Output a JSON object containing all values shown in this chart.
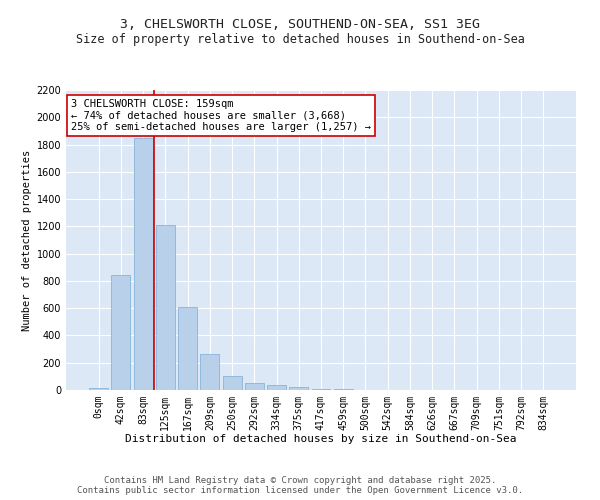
{
  "title_line1": "3, CHELSWORTH CLOSE, SOUTHEND-ON-SEA, SS1 3EG",
  "title_line2": "Size of property relative to detached houses in Southend-on-Sea",
  "xlabel": "Distribution of detached houses by size in Southend-on-Sea",
  "ylabel": "Number of detached properties",
  "bar_color": "#b8d0ea",
  "bar_edge_color": "#7aadd4",
  "background_color": "#dce8f5",
  "fig_background": "#ffffff",
  "categories": [
    "0sqm",
    "42sqm",
    "83sqm",
    "125sqm",
    "167sqm",
    "209sqm",
    "250sqm",
    "292sqm",
    "334sqm",
    "375sqm",
    "417sqm",
    "459sqm",
    "500sqm",
    "542sqm",
    "584sqm",
    "626sqm",
    "667sqm",
    "709sqm",
    "751sqm",
    "792sqm",
    "834sqm"
  ],
  "values": [
    18,
    840,
    1850,
    1210,
    610,
    265,
    105,
    55,
    38,
    20,
    10,
    5,
    0,
    0,
    0,
    0,
    0,
    0,
    0,
    0,
    0
  ],
  "ylim": [
    0,
    2200
  ],
  "yticks": [
    0,
    200,
    400,
    600,
    800,
    1000,
    1200,
    1400,
    1600,
    1800,
    2000,
    2200
  ],
  "vline_color": "#cc0000",
  "vline_pos": 2.5,
  "annotation_text": "3 CHELSWORTH CLOSE: 159sqm\n← 74% of detached houses are smaller (3,668)\n25% of semi-detached houses are larger (1,257) →",
  "annotation_box_color": "#ffffff",
  "annotation_box_edge": "#cc0000",
  "footer_line1": "Contains HM Land Registry data © Crown copyright and database right 2025.",
  "footer_line2": "Contains public sector information licensed under the Open Government Licence v3.0.",
  "title_fontsize": 9.5,
  "subtitle_fontsize": 8.5,
  "axis_label_fontsize": 8,
  "tick_fontsize": 7,
  "annotation_fontsize": 7.5,
  "footer_fontsize": 6.5,
  "ylabel_fontsize": 7.5
}
